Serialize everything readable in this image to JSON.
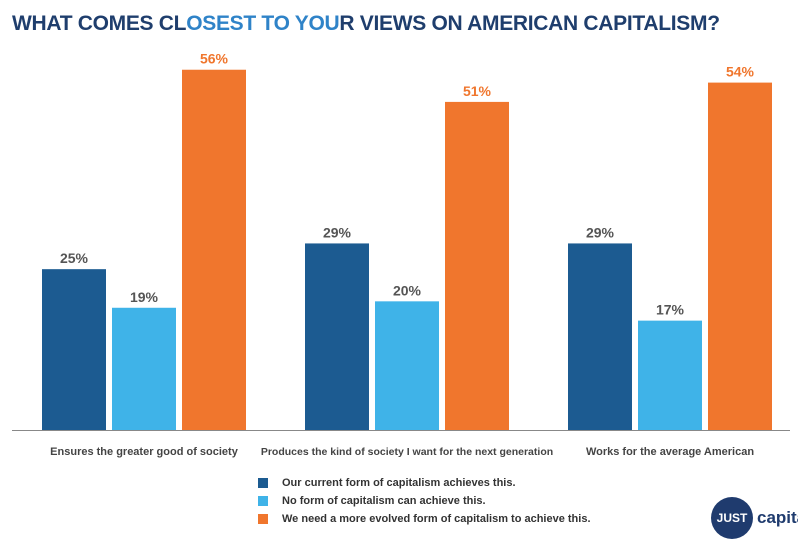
{
  "title": {
    "part1": "WHAT COMES CL",
    "part2": "OSEST TO YOU",
    "part3": "R VIEWS ON AMERICAN CAPITALISM?"
  },
  "colors": {
    "series1": "#1c5b91",
    "series2": "#3fb3e8",
    "series3": "#f0762d",
    "label": "#555555",
    "axis": "#888888"
  },
  "chart_data": {
    "type": "bar",
    "categories": [
      "Ensures the greater good of society",
      "Produces the kind of society I want for the next generation",
      "Works for the average American"
    ],
    "series": [
      {
        "name": "Our current form of capitalism achieves this.",
        "values": [
          25,
          29,
          29
        ],
        "labels": [
          "25%",
          "29%",
          "29%"
        ]
      },
      {
        "name": "No form of capitalism can achieve this.",
        "values": [
          19,
          20,
          17
        ],
        "labels": [
          "19%",
          "20%",
          "17%"
        ]
      },
      {
        "name": "We need a more evolved form of capitalism to achieve this.",
        "values": [
          56,
          51,
          54
        ],
        "labels": [
          "56%",
          "51%",
          "54%"
        ]
      }
    ],
    "ylim": [
      0,
      60
    ],
    "grid": false,
    "legend_placement": "bottom"
  },
  "logo": {
    "badge": "JUST",
    "text": "capita"
  }
}
